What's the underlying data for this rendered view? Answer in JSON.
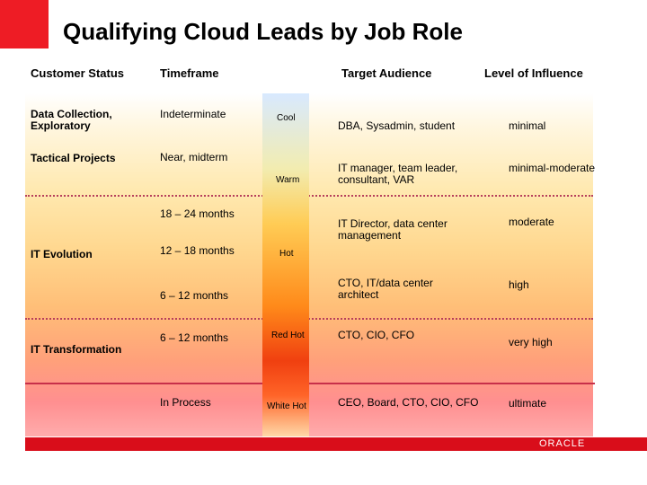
{
  "title": "Qualifying Cloud Leads by Job  Role",
  "headers": {
    "customer_status": "Customer Status",
    "timeframe": "Timeframe",
    "target_audience": "Target Audience",
    "influence": "Level of Influence"
  },
  "customer_status": {
    "data_collection": "Data Collection, Exploratory",
    "tactical": "Tactical Projects",
    "it_evolution": "IT Evolution",
    "it_transformation": "IT Transformation"
  },
  "timeframe": {
    "t1": "Indeterminate",
    "t2": "Near, midterm",
    "t3": "18 – 24 months",
    "t4": "12 – 18 months",
    "t5": "6 – 12 months",
    "t6": "6 – 12 months",
    "t7": "In Process"
  },
  "temperature": {
    "cool": "Cool",
    "warm": "Warm",
    "hot": "Hot",
    "red_hot": "Red Hot",
    "white_hot": "White Hot"
  },
  "audience": {
    "a1": "DBA, Sysadmin, student",
    "a2": "IT manager, team leader, consultant, VAR",
    "a3": "IT Director, data center management",
    "a4": "CTO, IT/data center architect",
    "a5": "CTO, CIO, CFO",
    "a6": "CEO, Board, CTO, CIO, CFO"
  },
  "influence": {
    "i1": "minimal",
    "i2": "minimal-moderate",
    "i3": "moderate",
    "i4": "high",
    "i5": "very high",
    "i6": "ultimate"
  },
  "logo": "ORACLE",
  "colors": {
    "brand_red": "#ee1c25",
    "footer_red": "#d90d1a"
  }
}
